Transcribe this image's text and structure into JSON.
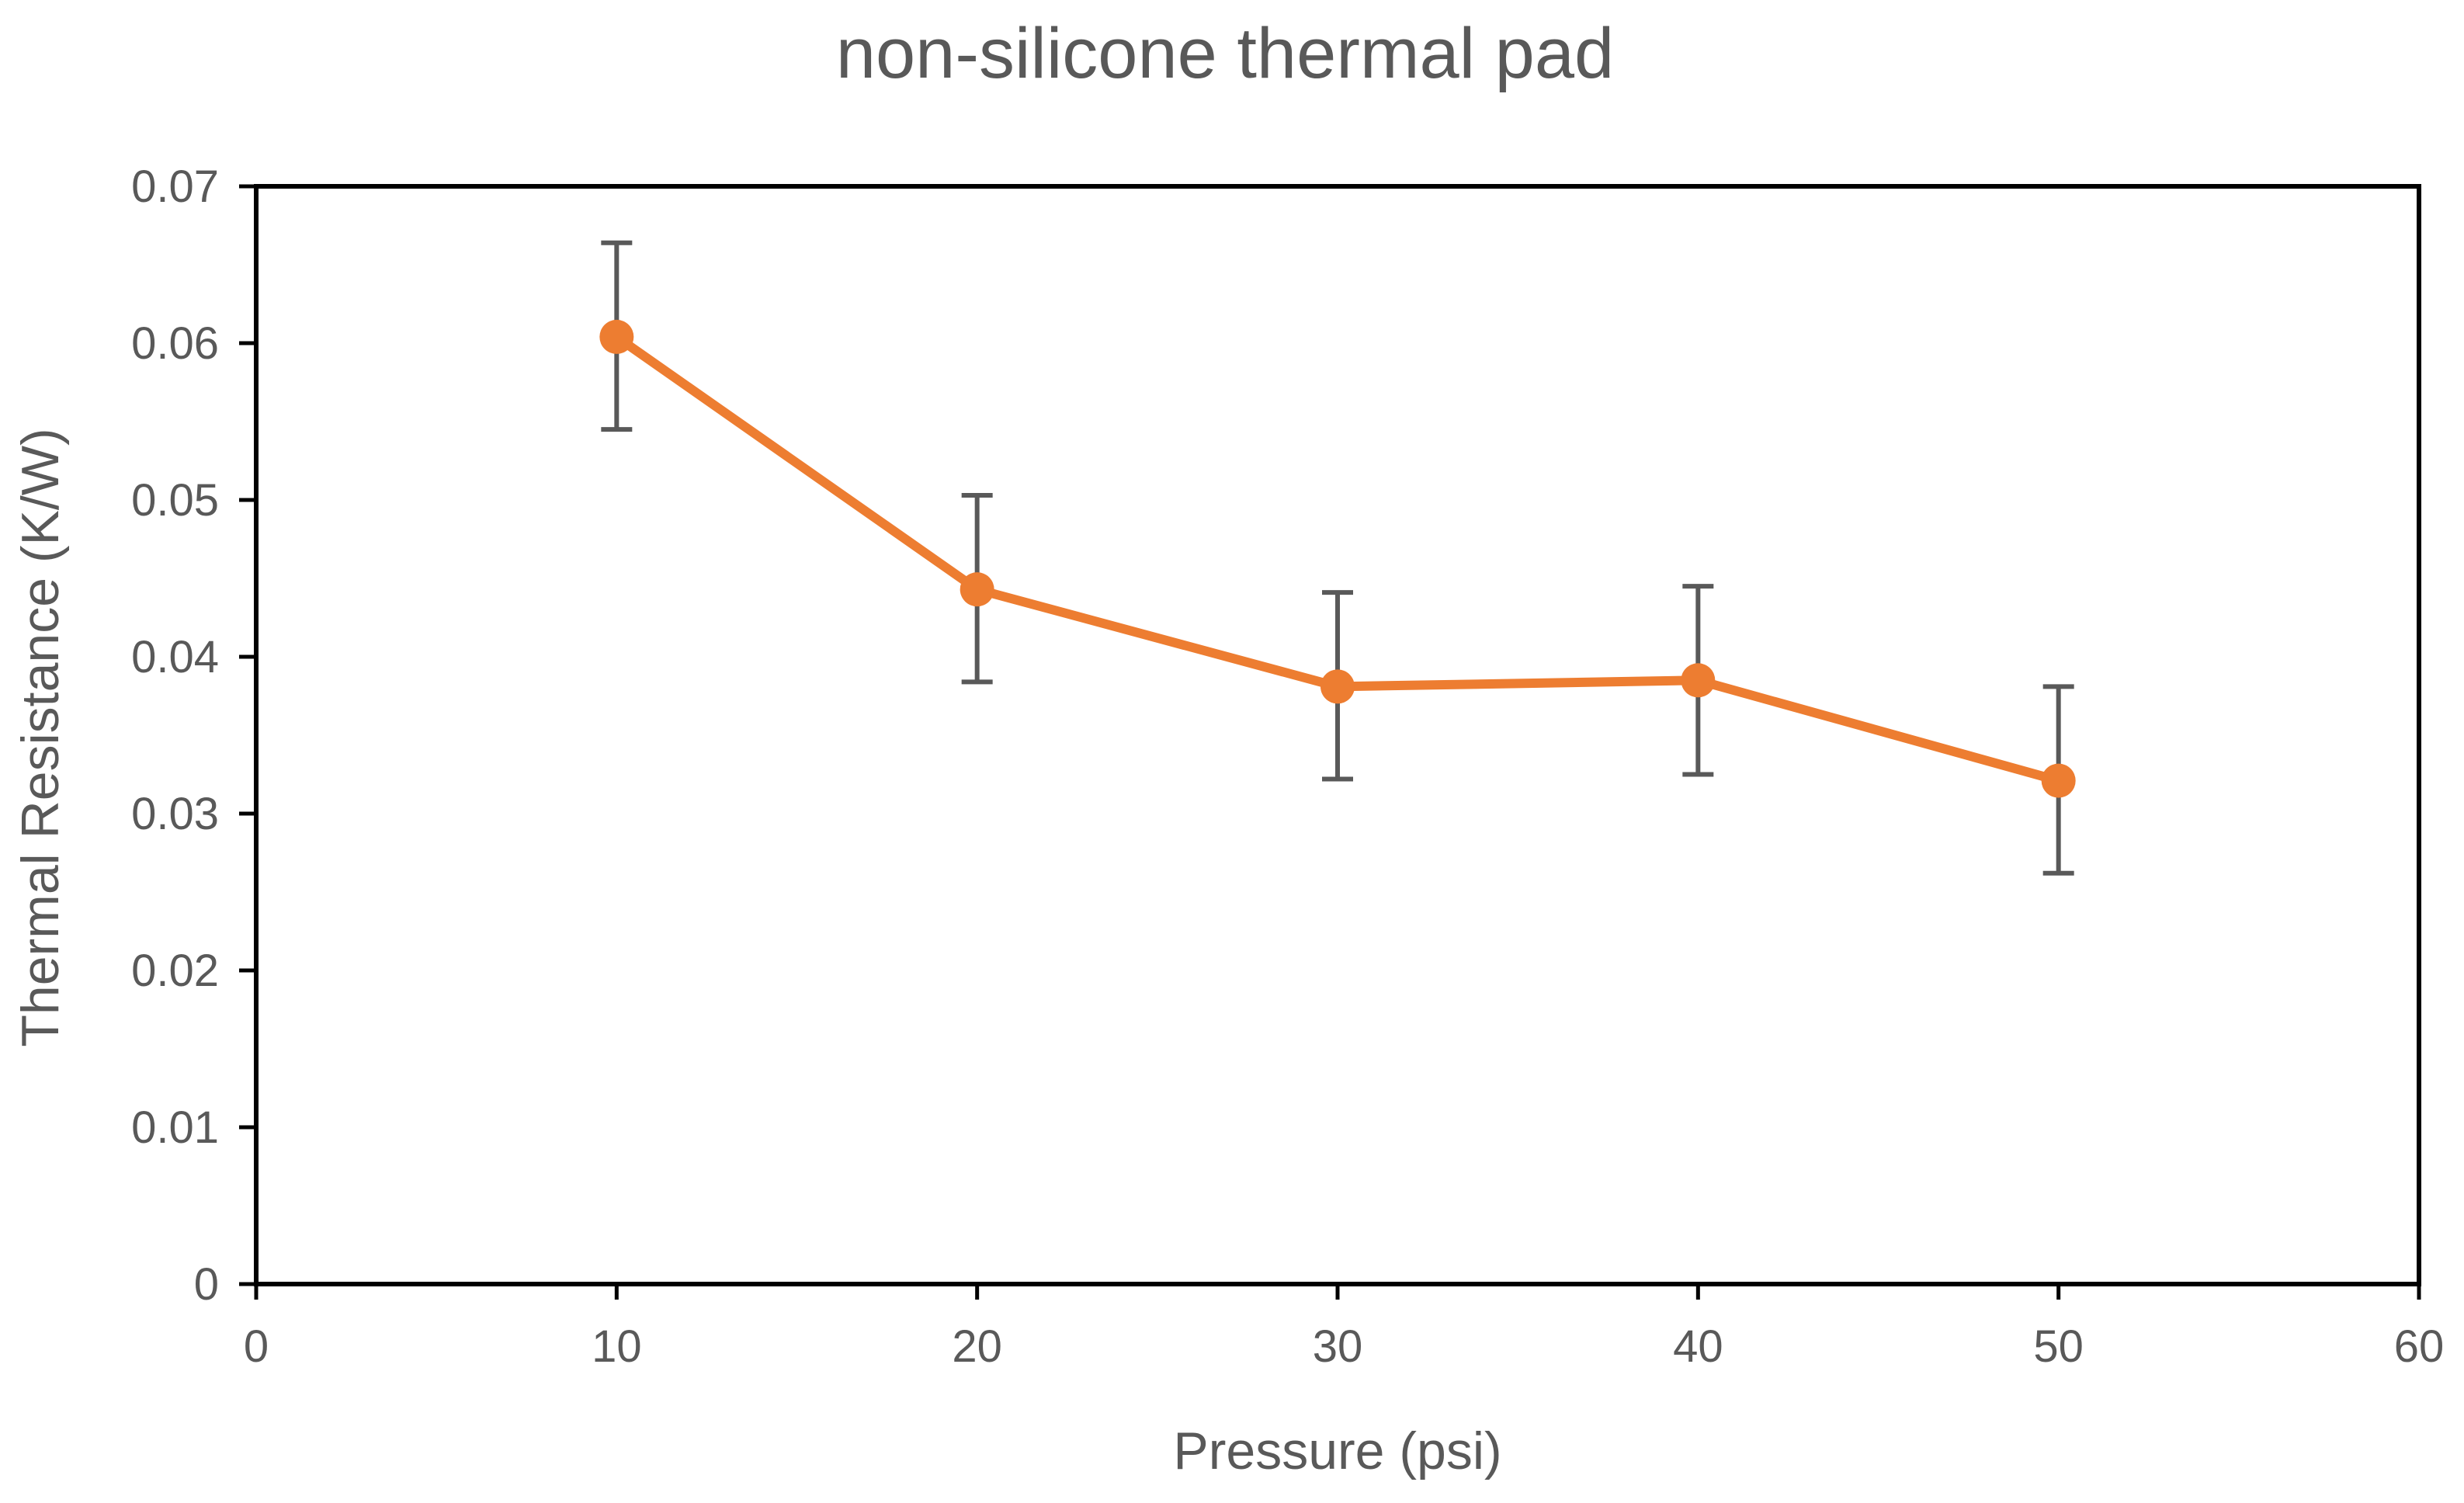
{
  "chart_data": {
    "type": "scatter",
    "title": "non-silicone thermal pad",
    "xlabel": "Pressure (psi)",
    "ylabel": "Thermal Resistance (K/W)",
    "xlim": [
      0,
      60
    ],
    "ylim": [
      0,
      0.07
    ],
    "xticks": [
      "0",
      "10",
      "20",
      "30",
      "40",
      "50",
      "60"
    ],
    "yticks": [
      "0",
      "0.01",
      "0.02",
      "0.03",
      "0.04",
      "0.05",
      "0.06",
      "0.07"
    ],
    "grid": false,
    "legend": "none",
    "series": [
      {
        "x": [
          10,
          20,
          30,
          40,
          50
        ],
        "y": [
          0.0604,
          0.0443,
          0.0381,
          0.0385,
          0.0321
        ],
        "error_low": [
          0.0545,
          0.0384,
          0.0322,
          0.0325,
          0.0262
        ],
        "error_high": [
          0.0664,
          0.0503,
          0.0441,
          0.0445,
          0.0381
        ],
        "color": "#ED7D31",
        "marker": "circle",
        "line": "straight"
      }
    ],
    "error_bar_color": "#595959",
    "frame_color": "#000000"
  }
}
